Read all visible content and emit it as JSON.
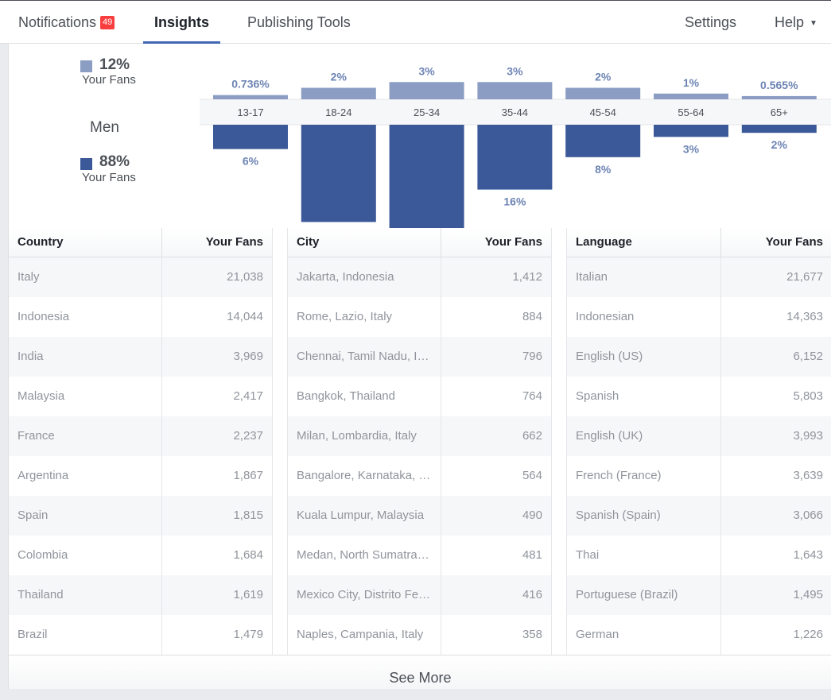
{
  "nav": {
    "notifications_label": "Notifications",
    "notifications_count": "49",
    "insights_label": "Insights",
    "publishing_tools_label": "Publishing Tools",
    "settings_label": "Settings",
    "help_label": "Help",
    "help_caret": "▼",
    "accent_color": "#4267b2",
    "badge_color": "#fa3e3e"
  },
  "legend": {
    "women_pct": "12%",
    "women_sub": "Your Fans",
    "gender_label": "Men",
    "men_pct": "88%",
    "men_sub": "Your Fans",
    "women_color": "#8b9dc3",
    "men_color": "#3b5998"
  },
  "chart_data": {
    "type": "bar",
    "categories": [
      "13-17",
      "18-24",
      "25-34",
      "35-44",
      "45-54",
      "55-64",
      "65+"
    ],
    "series": [
      {
        "values": [
          0.736,
          2,
          3,
          3,
          2,
          1,
          0.565
        ],
        "labels": [
          "0.736%",
          "2%",
          "3%",
          "3%",
          "2%",
          "1%",
          "0.565%"
        ],
        "color": "#8b9dc3"
      },
      {
        "values": [
          6,
          24,
          29,
          16,
          8,
          3,
          2
        ],
        "labels": [
          "6%",
          "24%",
          "29%",
          "16%",
          "8%",
          "3%",
          "2%"
        ],
        "color": "#3b5998"
      }
    ]
  },
  "tables": {
    "country": {
      "headers": [
        "Country",
        "Your Fans"
      ],
      "rows": [
        [
          "Italy",
          "21,038"
        ],
        [
          "Indonesia",
          "14,044"
        ],
        [
          "India",
          "3,969"
        ],
        [
          "Malaysia",
          "2,417"
        ],
        [
          "France",
          "2,237"
        ],
        [
          "Argentina",
          "1,867"
        ],
        [
          "Spain",
          "1,815"
        ],
        [
          "Colombia",
          "1,684"
        ],
        [
          "Thailand",
          "1,619"
        ],
        [
          "Brazil",
          "1,479"
        ]
      ]
    },
    "city": {
      "headers": [
        "City",
        "Your Fans"
      ],
      "rows": [
        [
          "Jakarta, Indonesia",
          "1,412"
        ],
        [
          "Rome, Lazio, Italy",
          "884"
        ],
        [
          "Chennai, Tamil Nadu, I…",
          "796"
        ],
        [
          "Bangkok, Thailand",
          "764"
        ],
        [
          "Milan, Lombardia, Italy",
          "662"
        ],
        [
          "Bangalore, Karnataka, …",
          "564"
        ],
        [
          "Kuala Lumpur, Malaysia",
          "490"
        ],
        [
          "Medan, North Sumatra,…",
          "481"
        ],
        [
          "Mexico City, Distrito Fe…",
          "416"
        ],
        [
          "Naples, Campania, Italy",
          "358"
        ]
      ]
    },
    "language": {
      "headers": [
        "Language",
        "Your Fans"
      ],
      "rows": [
        [
          "Italian",
          "21,677"
        ],
        [
          "Indonesian",
          "14,363"
        ],
        [
          "English (US)",
          "6,152"
        ],
        [
          "Spanish",
          "5,803"
        ],
        [
          "English (UK)",
          "3,993"
        ],
        [
          "French (France)",
          "3,639"
        ],
        [
          "Spanish (Spain)",
          "3,066"
        ],
        [
          "Thai",
          "1,643"
        ],
        [
          "Portuguese (Brazil)",
          "1,495"
        ],
        [
          "German",
          "1,226"
        ]
      ]
    }
  },
  "see_more_label": "See More"
}
